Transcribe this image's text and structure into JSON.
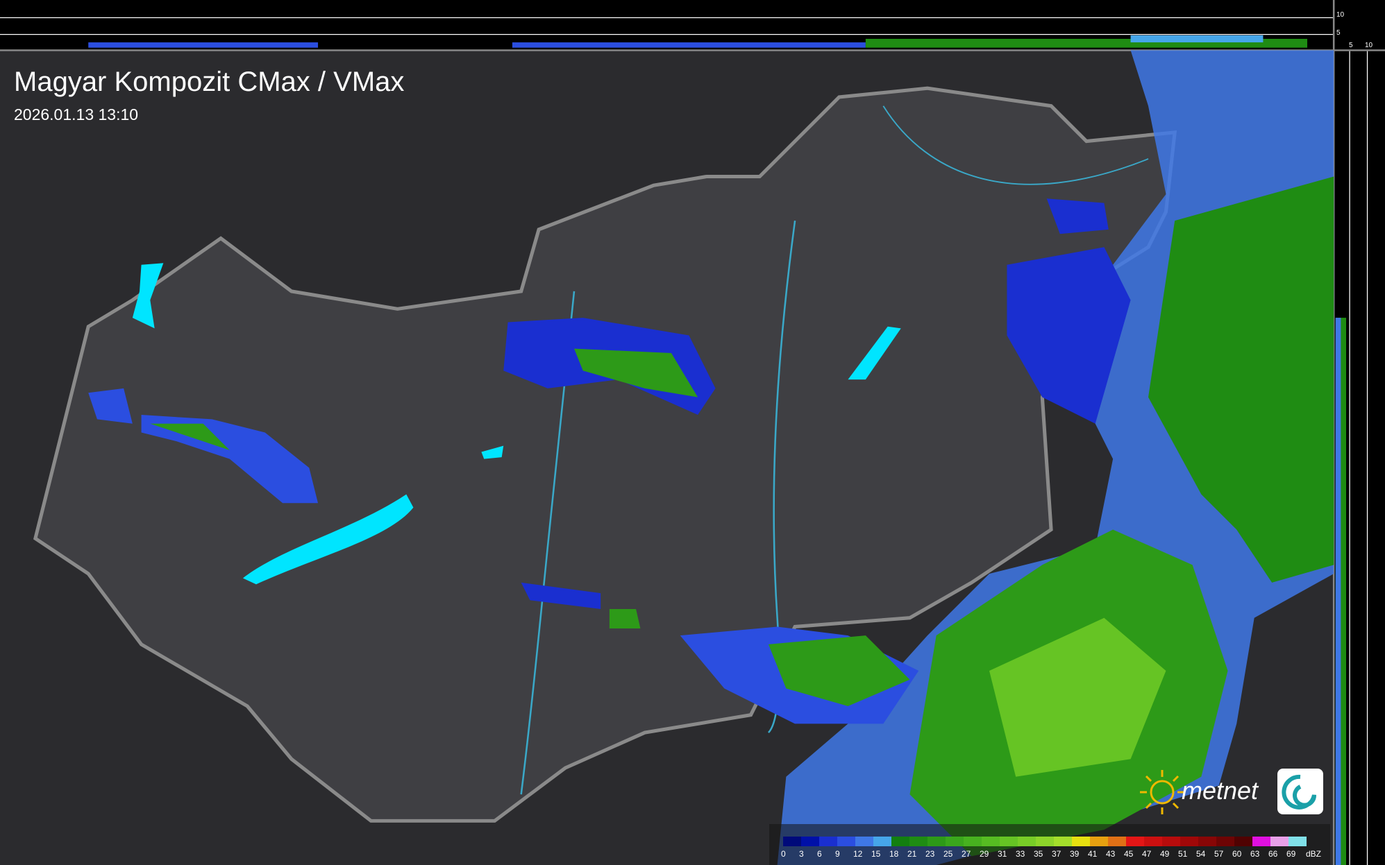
{
  "header": {
    "title": "Magyar Kompozit CMax / VMax",
    "timestamp": "2026.01.13 13:10"
  },
  "side_profile": {
    "vertical_ticks": [
      "10",
      "5"
    ],
    "horizontal_ticks": [
      "5",
      "10"
    ]
  },
  "legend": {
    "unit": "dBZ",
    "values": [
      "0",
      "3",
      "6",
      "9",
      "12",
      "15",
      "18",
      "21",
      "23",
      "25",
      "27",
      "29",
      "31",
      "33",
      "35",
      "37",
      "39",
      "41",
      "43",
      "45",
      "47",
      "49",
      "51",
      "54",
      "57",
      "60",
      "63",
      "66",
      "69"
    ],
    "colors": [
      "#000a7a",
      "#0010a8",
      "#1a2fd0",
      "#2b4ee0",
      "#3f78e6",
      "#46a6ea",
      "#137f10",
      "#1f8c13",
      "#2d9a18",
      "#3aa71c",
      "#47b21f",
      "#56bc22",
      "#66c424",
      "#78cc27",
      "#8dd42a",
      "#a4de2b",
      "#e6e010",
      "#e6a010",
      "#e07016",
      "#e41616",
      "#cc1010",
      "#b80c0c",
      "#a00808",
      "#880606",
      "#6e0404",
      "#500202",
      "#e010e0",
      "#e8a0e8",
      "#80e0e8"
    ]
  },
  "brand": {
    "name": "metnet"
  },
  "colors": {
    "lakes": "#00e5ff",
    "border": "#8a8a8a",
    "rivers": "#3aa8c8",
    "land": "#3d3d40",
    "background": "#2a2a2c"
  }
}
